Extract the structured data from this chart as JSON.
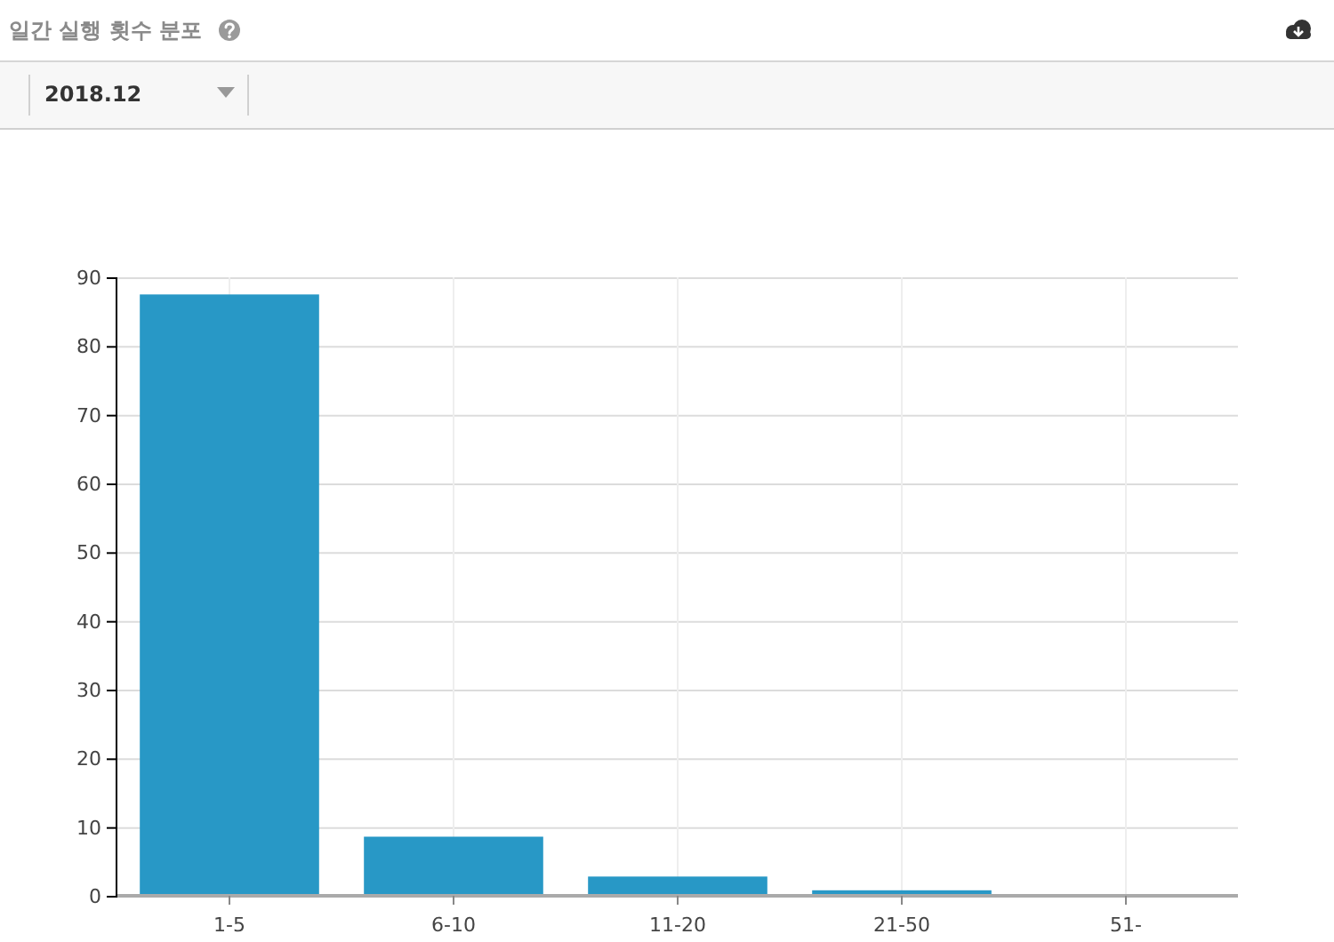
{
  "chart_data": {
    "type": "bar",
    "title": "일간 실행 횟수 분포",
    "subtitle": "2018.12",
    "categories": [
      "1-5",
      "6-10",
      "11-20",
      "21-50",
      "51-"
    ],
    "values": [
      87.5,
      8.6,
      2.8,
      0.8,
      0.2
    ],
    "color": "#2898c6",
    "ylim": [
      0,
      90
    ],
    "yticks": [
      0,
      10,
      20,
      30,
      40,
      50,
      60,
      70,
      80,
      90
    ],
    "grid": true
  }
}
